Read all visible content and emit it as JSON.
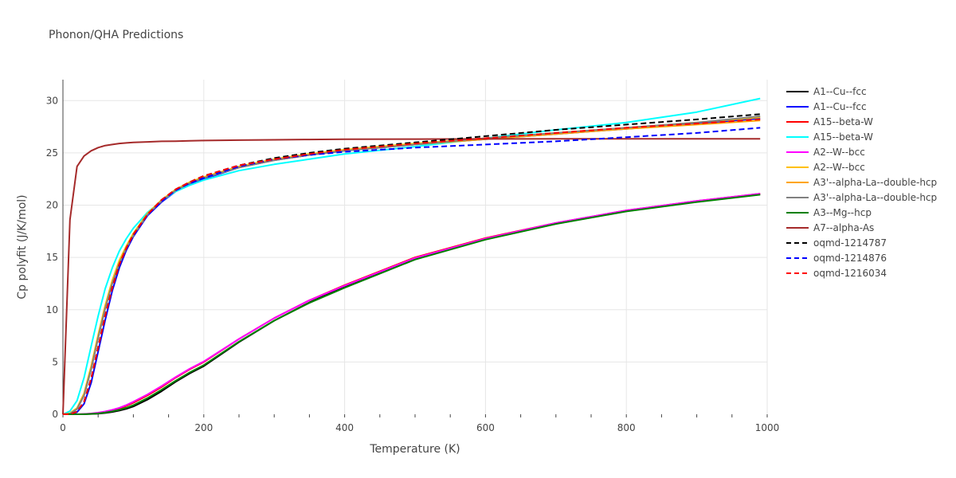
{
  "chart_data": {
    "type": "line",
    "title": "Phonon/QHA Predictions",
    "xlabel": "Temperature (K)",
    "ylabel": "Cp polyfit (J/K/mol)",
    "xlim": [
      0,
      1000
    ],
    "ylim": [
      0,
      32
    ],
    "xticks": [
      0,
      200,
      400,
      600,
      800,
      1000
    ],
    "yticks": [
      0,
      5,
      10,
      15,
      20,
      25,
      30
    ],
    "grid": true,
    "legend_position": "right",
    "x": [
      0,
      10,
      20,
      30,
      40,
      50,
      60,
      70,
      80,
      90,
      100,
      120,
      140,
      160,
      180,
      200,
      250,
      300,
      350,
      400,
      500,
      600,
      700,
      800,
      900,
      990
    ],
    "series": [
      {
        "name": "A1--Cu--fcc",
        "color": "#000000",
        "dash": "solid",
        "values": [
          0,
          0,
          0,
          0.01,
          0.03,
          0.06,
          0.12,
          0.22,
          0.35,
          0.52,
          0.75,
          1.4,
          2.2,
          3.1,
          3.9,
          4.6,
          6.9,
          8.95,
          10.7,
          12.2,
          14.85,
          16.75,
          18.25,
          19.45,
          20.35,
          21.05
        ]
      },
      {
        "name": "A1--Cu--fcc",
        "color": "#0000ff",
        "dash": "solid",
        "values": [
          0,
          0,
          0.2,
          1.0,
          3.0,
          6.0,
          9.0,
          11.8,
          14.0,
          15.7,
          17.0,
          19.0,
          20.3,
          21.3,
          22.0,
          22.5,
          23.6,
          24.3,
          24.8,
          25.2,
          25.8,
          26.3,
          26.8,
          27.3,
          27.8,
          28.3
        ]
      },
      {
        "name": "A15--beta-W",
        "color": "#ff0000",
        "dash": "solid",
        "values": [
          0,
          0,
          0,
          0.02,
          0.06,
          0.12,
          0.22,
          0.36,
          0.55,
          0.8,
          1.1,
          1.8,
          2.6,
          3.5,
          4.3,
          5.0,
          7.2,
          9.2,
          10.9,
          12.35,
          15.0,
          16.85,
          18.3,
          19.5,
          20.4,
          21.1
        ]
      },
      {
        "name": "A15--beta-W",
        "color": "#00ffff",
        "dash": "solid",
        "values": [
          0,
          0.3,
          1.3,
          3.5,
          6.5,
          9.4,
          12.0,
          14.0,
          15.6,
          16.8,
          17.8,
          19.3,
          20.4,
          21.3,
          21.9,
          22.4,
          23.3,
          23.9,
          24.4,
          24.9,
          25.6,
          26.4,
          27.2,
          27.9,
          28.9,
          30.2
        ]
      },
      {
        "name": "A2--W--bcc",
        "color": "#ff00ff",
        "dash": "solid",
        "values": [
          0,
          0,
          0,
          0.03,
          0.08,
          0.15,
          0.27,
          0.42,
          0.62,
          0.88,
          1.2,
          1.9,
          2.7,
          3.55,
          4.35,
          5.05,
          7.2,
          9.2,
          10.9,
          12.3,
          14.95,
          16.8,
          18.3,
          19.5,
          20.4,
          21.1
        ]
      },
      {
        "name": "A2--W--bcc",
        "color": "#ffc000",
        "dash": "solid",
        "values": [
          0,
          0.1,
          0.6,
          2.0,
          4.6,
          7.6,
          10.4,
          12.8,
          14.7,
          16.1,
          17.3,
          19.2,
          20.5,
          21.5,
          22.2,
          22.7,
          23.7,
          24.4,
          24.9,
          25.3,
          25.9,
          26.4,
          26.9,
          27.4,
          27.9,
          28.4
        ]
      },
      {
        "name": "A3'--alpha-La--double-hcp",
        "color": "#ffa500",
        "dash": "solid",
        "values": [
          0,
          0.05,
          0.5,
          1.8,
          4.3,
          7.3,
          10.1,
          12.5,
          14.4,
          15.9,
          17.1,
          19.1,
          20.4,
          21.4,
          22.1,
          22.6,
          23.6,
          24.3,
          24.8,
          25.2,
          25.8,
          26.3,
          26.8,
          27.3,
          27.7,
          28.1
        ]
      },
      {
        "name": "A3'--alpha-La--double-hcp",
        "color": "#808080",
        "dash": "solid",
        "values": [
          0,
          0.05,
          0.5,
          1.8,
          4.3,
          7.3,
          10.1,
          12.5,
          14.4,
          15.9,
          17.1,
          19.1,
          20.4,
          21.4,
          22.1,
          22.6,
          23.6,
          24.3,
          24.8,
          25.2,
          25.8,
          26.4,
          26.9,
          27.4,
          27.9,
          28.5
        ]
      },
      {
        "name": "A3--Mg--hcp",
        "color": "#008000",
        "dash": "solid",
        "values": [
          0,
          0,
          0,
          0.01,
          0.04,
          0.08,
          0.16,
          0.28,
          0.43,
          0.62,
          0.87,
          1.55,
          2.35,
          3.2,
          4.0,
          4.7,
          6.95,
          8.95,
          10.65,
          12.1,
          14.8,
          16.7,
          18.2,
          19.4,
          20.3,
          21.0
        ]
      },
      {
        "name": "A7--alpha-As",
        "color": "#a52a2a",
        "dash": "solid",
        "values": [
          0,
          18.6,
          23.7,
          24.7,
          25.2,
          25.5,
          25.7,
          25.8,
          25.9,
          25.95,
          26.0,
          26.05,
          26.1,
          26.12,
          26.15,
          26.18,
          26.22,
          26.25,
          26.28,
          26.3,
          26.32,
          26.33,
          26.34,
          26.35,
          26.35,
          26.35
        ]
      },
      {
        "name": "oqmd-1214787",
        "color": "#000000",
        "dash": "dash",
        "values": [
          0,
          0,
          0.25,
          1.2,
          3.4,
          6.4,
          9.4,
          12.1,
          14.3,
          15.9,
          17.2,
          19.1,
          20.5,
          21.5,
          22.2,
          22.8,
          23.8,
          24.5,
          25.0,
          25.4,
          26.0,
          26.6,
          27.2,
          27.7,
          28.2,
          28.7
        ]
      },
      {
        "name": "oqmd-1214876",
        "color": "#0000ff",
        "dash": "dash",
        "values": [
          0,
          0,
          0.25,
          1.2,
          3.4,
          6.4,
          9.4,
          12.0,
          14.2,
          15.8,
          17.1,
          19.0,
          20.4,
          21.4,
          22.1,
          22.6,
          23.7,
          24.4,
          24.8,
          25.1,
          25.5,
          25.8,
          26.1,
          26.5,
          26.9,
          27.4
        ]
      },
      {
        "name": "oqmd-1216034",
        "color": "#ff0000",
        "dash": "dash",
        "values": [
          0,
          0,
          0.25,
          1.2,
          3.4,
          6.4,
          9.4,
          12.1,
          14.3,
          15.9,
          17.2,
          19.1,
          20.5,
          21.5,
          22.2,
          22.8,
          23.8,
          24.4,
          24.9,
          25.3,
          25.9,
          26.4,
          26.9,
          27.4,
          27.8,
          28.2
        ]
      }
    ]
  }
}
